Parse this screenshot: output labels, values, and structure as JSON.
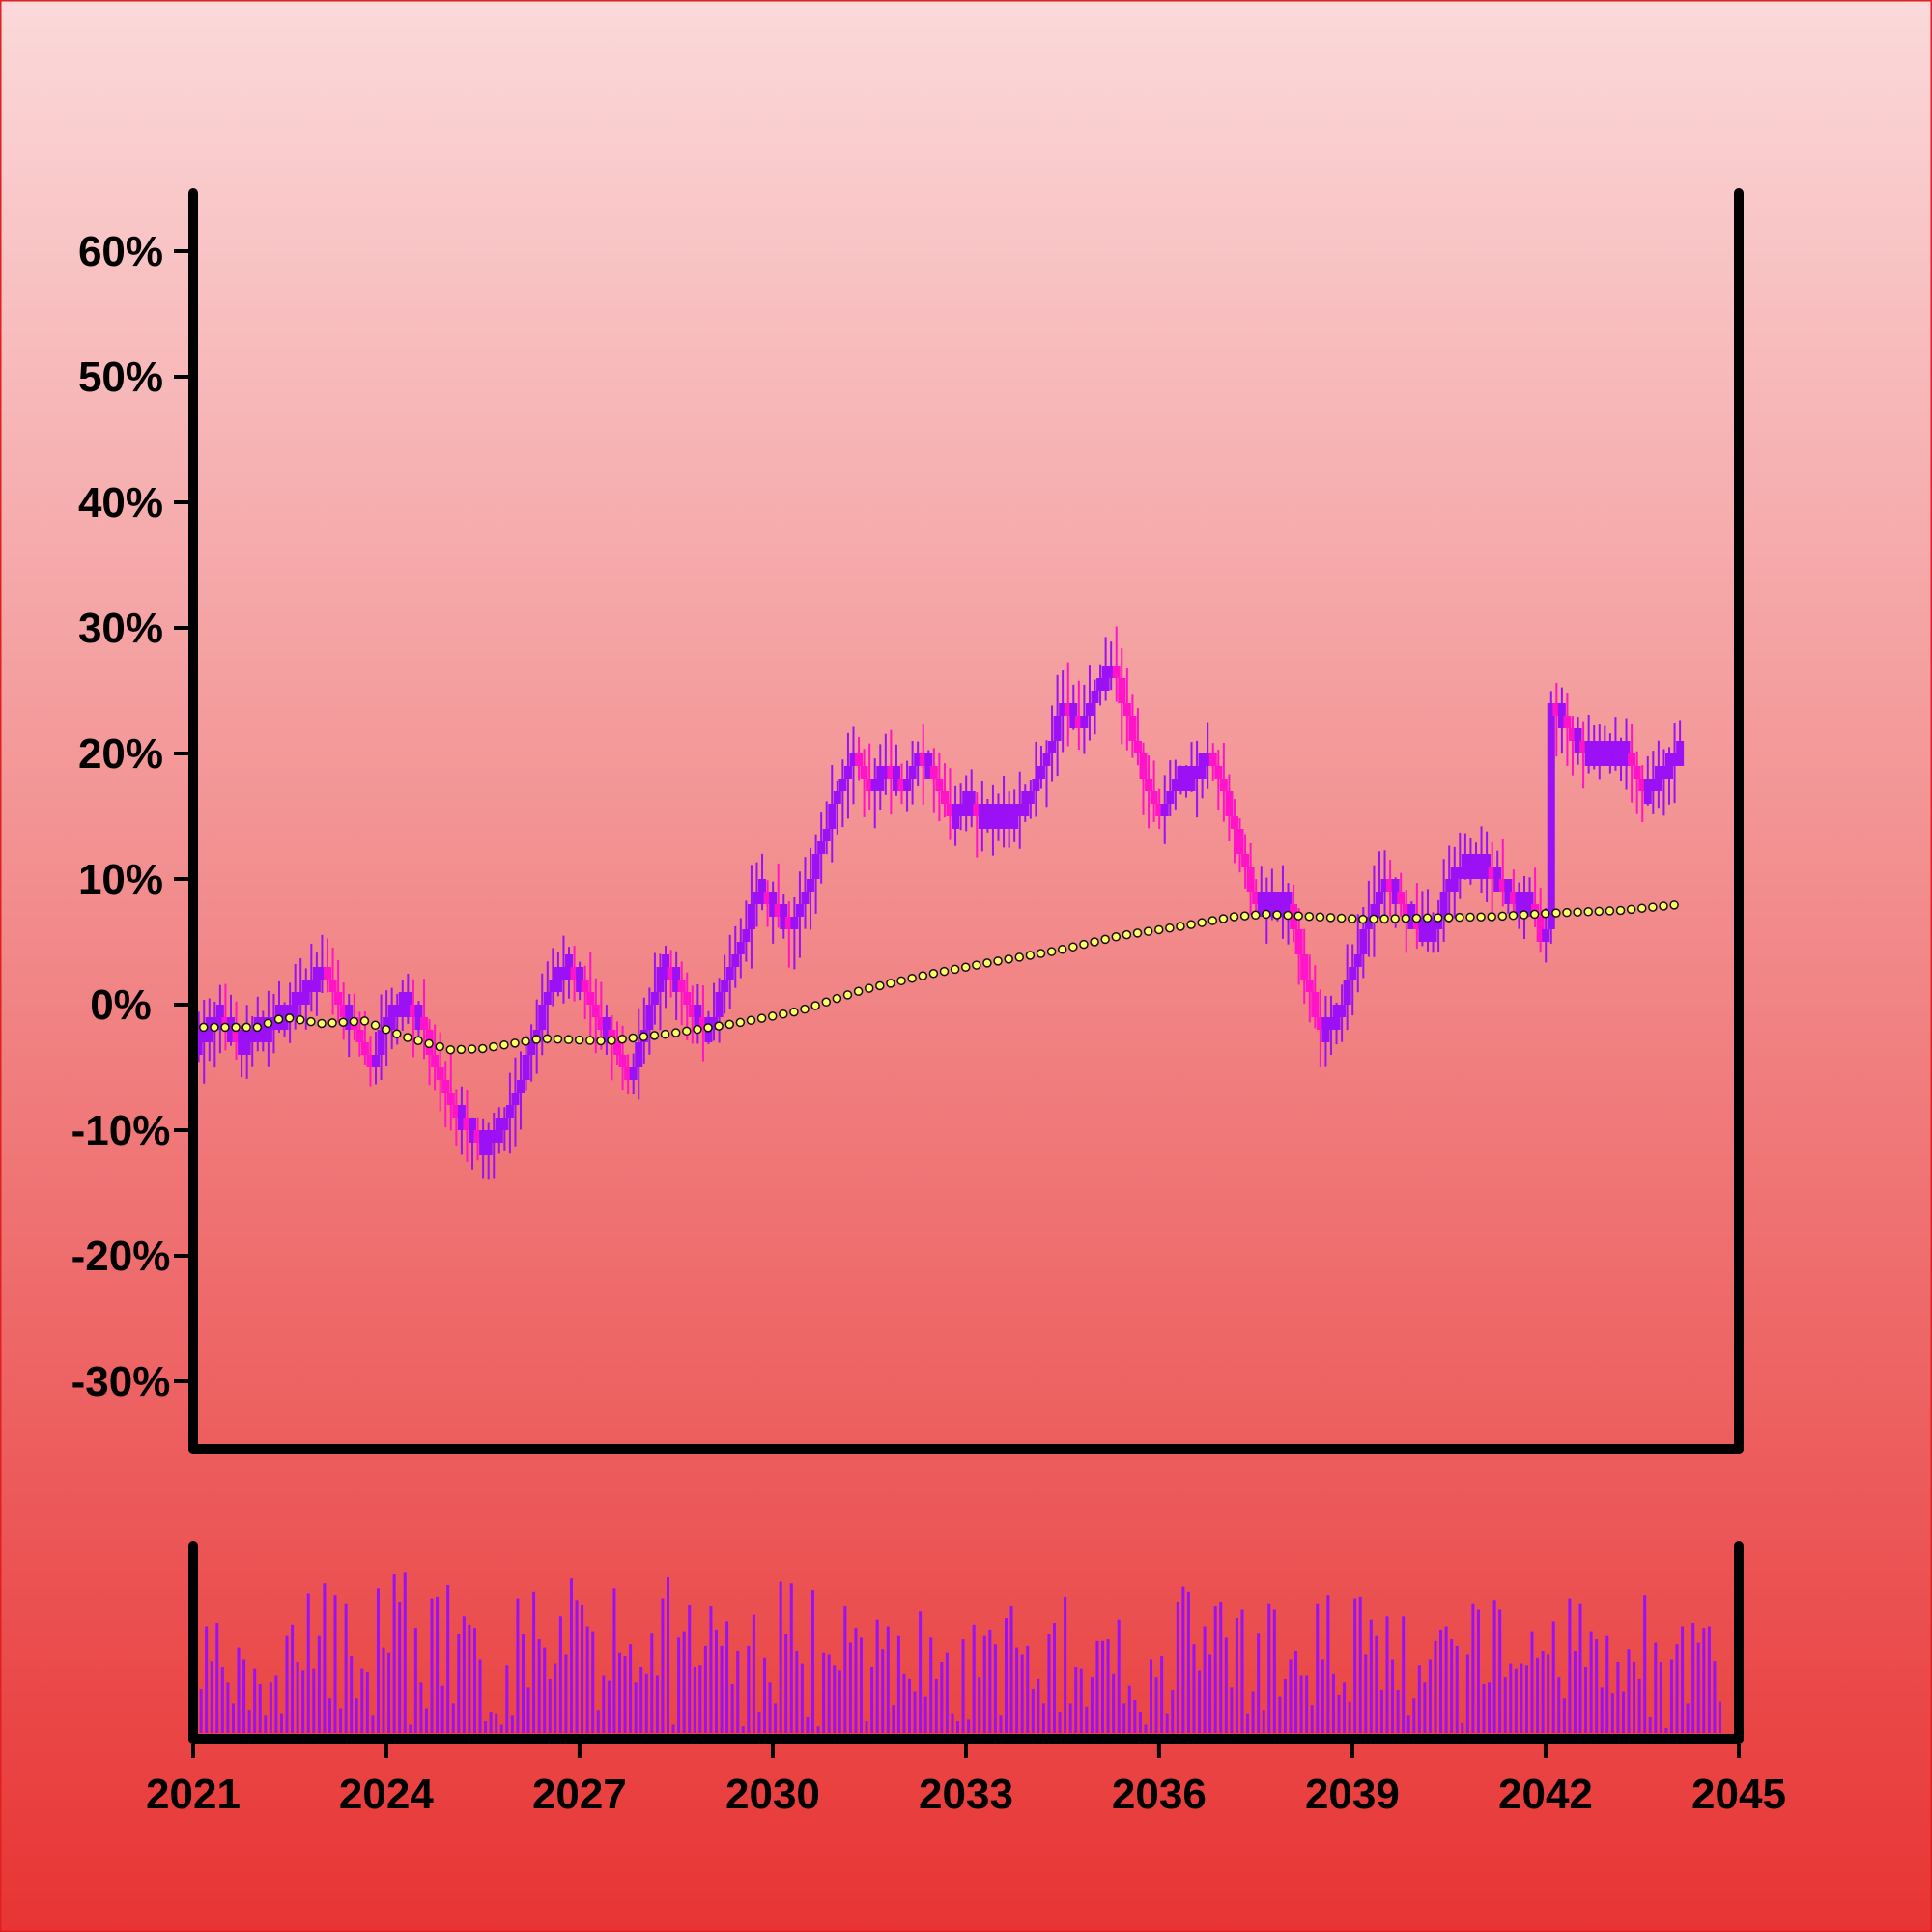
{
  "colors": {
    "background_top": "#fbd9da",
    "background_bottom": "#e83434",
    "page_border": "#e02020",
    "up_candle": "#9b10f5",
    "down_candle": "#ff14c8",
    "volume_bar": "#9b10f5",
    "moving_average_fill": "#ffff66",
    "moving_average_stroke": "#111111",
    "axis": "#000000"
  },
  "chart_data": [
    {
      "type": "candlestick",
      "title": "",
      "xlabel": "",
      "ylabel": "",
      "y_unit": "%",
      "xlim": [
        "2021-01-01",
        "2045-01-01"
      ],
      "ylim": [
        -35,
        65
      ],
      "y_ticks": [
        -30,
        -20,
        -10,
        0,
        10,
        20,
        30,
        40,
        50,
        60
      ],
      "y_tick_labels": [
        "-30%",
        "-20%",
        "-10%",
        "0%",
        "10%",
        "20%",
        "30%",
        "40%",
        "50%",
        "60%"
      ],
      "x_ticks": [
        "2021",
        "2024",
        "2027",
        "2030",
        "2033",
        "2036",
        "2039",
        "2042",
        "2045"
      ],
      "grid": false,
      "legend": "none",
      "close_path": [
        [
          "2021-02-01",
          -3
        ],
        [
          "2021-06-01",
          -1
        ],
        [
          "2021-10-01",
          -3
        ],
        [
          "2022-02-01",
          -2
        ],
        [
          "2022-06-01",
          -1
        ],
        [
          "2022-10-01",
          1
        ],
        [
          "2023-01-01",
          3
        ],
        [
          "2023-04-01",
          0
        ],
        [
          "2023-07-01",
          -2
        ],
        [
          "2023-10-01",
          -5
        ],
        [
          "2024-01-01",
          -1
        ],
        [
          "2024-04-01",
          0
        ],
        [
          "2024-07-01",
          -1
        ],
        [
          "2024-10-01",
          -5
        ],
        [
          "2025-01-01",
          -8
        ],
        [
          "2025-04-01",
          -10
        ],
        [
          "2025-07-01",
          -11
        ],
        [
          "2025-10-01",
          -10
        ],
        [
          "2026-01-01",
          -7
        ],
        [
          "2026-04-01",
          -3
        ],
        [
          "2026-07-01",
          1
        ],
        [
          "2026-10-01",
          3
        ],
        [
          "2027-01-01",
          2
        ],
        [
          "2027-04-01",
          -1
        ],
        [
          "2027-07-01",
          -3
        ],
        [
          "2027-10-01",
          -6
        ],
        [
          "2028-01-01",
          -2
        ],
        [
          "2028-04-01",
          3
        ],
        [
          "2028-07-01",
          2
        ],
        [
          "2028-10-01",
          -1
        ],
        [
          "2029-01-01",
          -2
        ],
        [
          "2029-04-01",
          2
        ],
        [
          "2029-07-01",
          5
        ],
        [
          "2029-10-01",
          9
        ],
        [
          "2030-01-01",
          8
        ],
        [
          "2030-04-01",
          6
        ],
        [
          "2030-07-01",
          9
        ],
        [
          "2030-10-01",
          13
        ],
        [
          "2031-01-01",
          17
        ],
        [
          "2031-04-01",
          20
        ],
        [
          "2031-07-01",
          17
        ],
        [
          "2031-10-01",
          19
        ],
        [
          "2032-01-01",
          17
        ],
        [
          "2032-04-01",
          20
        ],
        [
          "2032-07-01",
          18
        ],
        [
          "2032-10-01",
          15
        ],
        [
          "2033-01-01",
          16
        ],
        [
          "2033-04-01",
          15
        ],
        [
          "2033-07-01",
          15
        ],
        [
          "2033-10-01",
          15
        ],
        [
          "2034-01-01",
          17
        ],
        [
          "2034-04-01",
          20
        ],
        [
          "2034-07-01",
          24
        ],
        [
          "2034-10-01",
          22
        ],
        [
          "2035-01-01",
          25
        ],
        [
          "2035-04-01",
          27
        ],
        [
          "2035-07-01",
          23
        ],
        [
          "2035-10-01",
          18
        ],
        [
          "2036-01-01",
          15
        ],
        [
          "2036-04-01",
          18
        ],
        [
          "2036-07-01",
          18
        ],
        [
          "2036-10-01",
          20
        ],
        [
          "2037-01-01",
          17
        ],
        [
          "2037-04-01",
          12
        ],
        [
          "2037-07-01",
          8
        ],
        [
          "2037-10-01",
          8
        ],
        [
          "2038-01-01",
          8
        ],
        [
          "2038-04-01",
          2
        ],
        [
          "2038-07-01",
          -2
        ],
        [
          "2038-10-01",
          -1
        ],
        [
          "2039-01-01",
          3
        ],
        [
          "2039-04-01",
          7
        ],
        [
          "2039-07-01",
          10
        ],
        [
          "2039-10-01",
          8
        ],
        [
          "2040-01-01",
          6
        ],
        [
          "2040-04-01",
          6
        ],
        [
          "2040-07-01",
          10
        ],
        [
          "2040-10-01",
          11
        ],
        [
          "2041-01-01",
          11
        ],
        [
          "2041-04-01",
          10
        ],
        [
          "2041-07-01",
          8
        ],
        [
          "2041-10-01",
          8
        ],
        [
          "2042-01-01",
          4
        ],
        [
          "2042-01-20",
          24
        ],
        [
          "2042-05-01",
          22
        ],
        [
          "2042-09-01",
          20
        ],
        [
          "2043-01-01",
          20
        ],
        [
          "2043-04-01",
          20
        ],
        [
          "2043-07-01",
          17
        ],
        [
          "2043-10-01",
          18
        ],
        [
          "2044-01-01",
          20
        ],
        [
          "2044-02-15",
          20
        ]
      ],
      "moving_average": [
        [
          "2021-03-01",
          -1.8
        ],
        [
          "2022-01-01",
          -1.8
        ],
        [
          "2022-06-01",
          -1.0
        ],
        [
          "2023-01-01",
          -1.5
        ],
        [
          "2023-09-01",
          -1.3
        ],
        [
          "2024-04-01",
          -2.5
        ],
        [
          "2025-01-01",
          -3.6
        ],
        [
          "2025-07-01",
          -3.5
        ],
        [
          "2026-06-01",
          -2.7
        ],
        [
          "2027-06-01",
          -2.9
        ],
        [
          "2028-06-01",
          -2.3
        ],
        [
          "2029-06-01",
          -1.5
        ],
        [
          "2030-06-01",
          -0.5
        ],
        [
          "2031-06-01",
          1.2
        ],
        [
          "2032-06-01",
          2.4
        ],
        [
          "2033-06-01",
          3.4
        ],
        [
          "2034-06-01",
          4.3
        ],
        [
          "2035-06-01",
          5.5
        ],
        [
          "2036-06-01",
          6.3
        ],
        [
          "2037-03-01",
          7.0
        ],
        [
          "2037-09-01",
          7.2
        ],
        [
          "2038-06-01",
          7.0
        ],
        [
          "2039-03-01",
          6.8
        ],
        [
          "2040-03-01",
          6.9
        ],
        [
          "2041-03-01",
          7.0
        ],
        [
          "2042-03-01",
          7.3
        ],
        [
          "2043-03-01",
          7.5
        ],
        [
          "2044-02-15",
          8.0
        ]
      ]
    },
    {
      "type": "bar",
      "role": "volume",
      "title": "",
      "xlabel": "",
      "ylabel": "",
      "xlim": [
        "2021-01-01",
        "2045-01-01"
      ],
      "ylim": [
        0,
        100
      ],
      "x_ticks": [
        "2021",
        "2024",
        "2027",
        "2030",
        "2033",
        "2036",
        "2039",
        "2042",
        "2045"
      ],
      "grid": false,
      "legend": "none",
      "period_months": 1,
      "values": [
        59,
        27,
        65,
        44,
        67,
        40,
        31,
        18,
        52,
        45,
        14,
        39,
        30,
        11,
        31,
        35,
        12,
        59,
        66,
        43,
        38,
        85,
        39,
        59,
        91,
        21,
        84,
        15,
        79,
        47,
        21,
        39,
        37,
        11,
        88,
        52,
        49,
        97,
        80,
        98,
        5,
        64,
        31,
        15,
        82,
        83,
        29,
        90,
        18,
        60,
        71,
        66,
        64,
        45,
        7,
        13,
        12,
        5,
        41,
        11,
        82,
        60,
        28,
        86,
        57,
        52,
        33,
        42,
        71,
        48,
        94,
        81,
        78,
        65,
        62,
        14,
        35,
        32,
        88,
        49,
        47,
        54,
        31,
        40,
        36,
        61,
        35,
        82,
        95,
        5,
        58,
        62,
        78,
        40,
        41,
        53,
        77,
        63,
        53,
        68,
        30,
        50,
        4,
        53,
        72,
        13,
        46,
        31,
        18,
        92,
        60,
        91,
        50,
        42,
        10,
        87,
        4,
        49,
        48,
        41,
        38,
        77,
        55,
        64,
        58,
        7,
        40,
        69,
        51,
        65,
        17,
        59,
        36,
        33,
        25,
        74,
        22,
        58,
        33,
        43,
        49,
        12,
        7,
        57,
        8,
        66,
        34,
        59,
        63,
        54,
        11,
        70,
        77,
        52,
        48,
        53,
        27,
        33,
        18,
        60,
        67,
        13,
        83,
        18,
        40,
        39,
        16,
        34,
        56,
        56,
        57,
        36,
        69,
        18,
        29,
        20,
        13,
        5,
        45,
        34,
        47,
        12,
        26,
        80,
        89,
        86,
        54,
        38,
        65,
        48,
        77,
        80,
        58,
        28,
        70,
        75,
        12,
        25,
        61,
        14,
        79,
        75,
        22,
        33,
        45,
        50,
        35,
        35,
        17,
        79,
        45,
        84,
        36,
        23,
        31,
        19,
        82,
        83,
        48,
        69,
        59,
        26,
        71,
        45,
        26,
        71,
        11,
        21,
        41,
        31,
        45,
        56,
        63,
        65,
        57,
        53,
        6,
        48,
        79,
        75,
        30,
        31,
        81,
        75,
        34,
        42,
        39,
        42,
        41,
        62,
        46,
        50,
        48,
        68,
        34,
        21,
        82,
        50,
        79,
        40,
        62,
        57,
        28,
        59,
        24,
        43,
        25,
        51,
        43,
        33,
        84,
        10,
        55,
        43,
        3,
        45,
        54,
        65,
        18,
        67,
        55,
        64,
        65,
        44,
        19
      ]
    }
  ]
}
